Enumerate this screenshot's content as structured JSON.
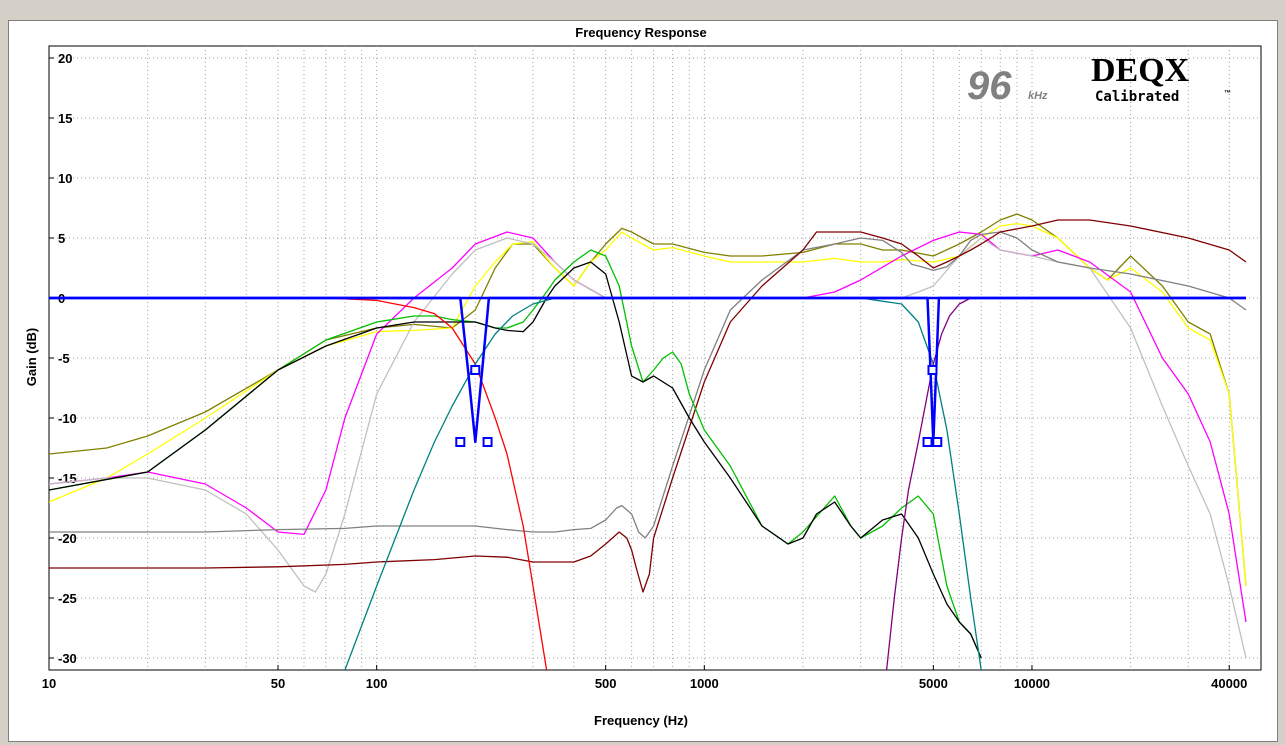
{
  "chart_data": {
    "type": "line",
    "title": "Frequency Response",
    "xlabel": "Frequency (Hz)",
    "ylabel": "Gain (dB)",
    "xscale": "log",
    "xlim": [
      10,
      50000
    ],
    "ylim": [
      -31,
      21
    ],
    "x_ticks": [
      {
        "value": 10,
        "label": "10"
      },
      {
        "value": 50,
        "label": "50"
      },
      {
        "value": 100,
        "label": "100"
      },
      {
        "value": 500,
        "label": "500"
      },
      {
        "value": 1000,
        "label": "1000"
      },
      {
        "value": 5000,
        "label": "5000"
      },
      {
        "value": 10000,
        "label": "10000"
      },
      {
        "value": 40000,
        "label": "40000"
      }
    ],
    "y_ticks": [
      {
        "value": 20,
        "label": "20"
      },
      {
        "value": 15,
        "label": "15"
      },
      {
        "value": 10,
        "label": "10"
      },
      {
        "value": 5,
        "label": "5"
      },
      {
        "value": 0,
        "label": "0"
      },
      {
        "value": -5,
        "label": "-5"
      },
      {
        "value": -10,
        "label": "-10"
      },
      {
        "value": -15,
        "label": "-15"
      },
      {
        "value": -20,
        "label": "-20"
      },
      {
        "value": -25,
        "label": "-25"
      },
      {
        "value": -30,
        "label": "-30"
      }
    ],
    "grid": true,
    "logo": {
      "rate": "96",
      "unit": "kHz",
      "brand": "DEQX",
      "subtitle": "Calibrated",
      "tm": "™"
    },
    "series": [
      {
        "color": "#808000",
        "x": [
          10,
          15,
          20,
          30,
          50,
          70,
          100,
          130,
          170,
          200,
          230,
          260,
          300,
          350,
          400,
          450,
          500,
          560,
          600,
          700,
          800,
          1000,
          1200,
          1500,
          2000,
          2500,
          3000,
          3500,
          4000,
          5000,
          6000,
          7000,
          8000,
          9000,
          10000,
          12000,
          15000,
          17000,
          20000,
          25000,
          30000,
          35000,
          40000,
          45000
        ],
        "y": [
          -13,
          -12.5,
          -11.5,
          -9.5,
          -6,
          -3.5,
          -2.5,
          -2.2,
          -2.5,
          -1,
          2.5,
          4.5,
          4.5,
          2.5,
          1,
          3,
          4.5,
          5.8,
          5.5,
          4.5,
          4.5,
          3.8,
          3.5,
          3.5,
          3.8,
          4.5,
          4.5,
          4,
          4,
          3.5,
          4.5,
          5.5,
          6.5,
          7,
          6.5,
          5,
          2.5,
          1.5,
          3.5,
          1,
          -2,
          -3,
          -8,
          -24
        ]
      },
      {
        "color": "#ffff00",
        "x": [
          10,
          15,
          20,
          30,
          50,
          70,
          100,
          130,
          170,
          200,
          230,
          260,
          300,
          350,
          400,
          450,
          500,
          560,
          600,
          700,
          800,
          1000,
          1200,
          1500,
          2000,
          2500,
          3000,
          3500,
          4000,
          5000,
          6000,
          7000,
          8000,
          9000,
          10000,
          12000,
          15000,
          17000,
          20000,
          25000,
          30000,
          35000,
          40000,
          45000
        ],
        "y": [
          -17,
          -15,
          -13,
          -10,
          -6,
          -4,
          -2.8,
          -2.7,
          -2.5,
          1,
          3,
          4.5,
          4.7,
          2.5,
          1,
          3,
          4,
          5.5,
          5,
          4,
          4.2,
          3.5,
          3,
          3,
          3,
          3.3,
          3,
          3,
          3.2,
          3,
          3.5,
          5,
          6,
          6.2,
          6,
          5,
          2.5,
          1.5,
          2.5,
          0.5,
          -2.5,
          -3.5,
          -8,
          -24
        ]
      },
      {
        "color": "#ff00ff",
        "x": [
          10,
          15,
          20,
          30,
          40,
          50,
          60,
          70,
          80,
          100,
          130,
          170,
          200,
          250,
          300,
          350,
          400,
          500,
          600,
          700,
          800,
          1000,
          1500,
          2000,
          2500,
          3000,
          4000,
          5000,
          6000,
          7000,
          8000,
          10000,
          12000,
          15000,
          20000,
          25000,
          30000,
          35000,
          40000,
          45000
        ],
        "y": [
          -15.5,
          -15,
          -14.5,
          -15.5,
          -17.5,
          -19.5,
          -19.7,
          -16,
          -10,
          -3,
          0,
          2.5,
          4.5,
          5.5,
          5,
          3,
          1.5,
          0,
          0,
          0,
          0,
          0,
          0,
          0,
          0.5,
          1.5,
          3.5,
          4.8,
          5.5,
          5.3,
          4,
          3.5,
          4,
          3,
          0.5,
          -5,
          -8,
          -12,
          -18,
          -27
        ]
      },
      {
        "color": "#c0c0c0",
        "x": [
          10,
          15,
          20,
          30,
          40,
          50,
          60,
          65,
          70,
          80,
          100,
          130,
          170,
          200,
          250,
          300,
          350,
          400,
          500,
          600,
          700,
          800,
          1000,
          1500,
          2000,
          2500,
          3000,
          3500,
          4000,
          4500,
          5000,
          6000,
          7000,
          8000,
          10000,
          12000,
          15000,
          20000,
          25000,
          30000,
          35000,
          40000,
          45000
        ],
        "y": [
          -15.5,
          -15,
          -15,
          -16,
          -18,
          -21,
          -24,
          -24.5,
          -23,
          -18,
          -8,
          -2,
          2,
          4,
          5,
          4.5,
          3,
          1.5,
          0,
          0,
          0,
          0,
          0,
          0,
          0,
          0,
          0,
          0,
          0,
          0.5,
          1,
          3.5,
          5,
          4,
          3.5,
          3,
          2.5,
          -2.5,
          -9,
          -14,
          -18,
          -24,
          -30
        ]
      },
      {
        "color": "#808080",
        "x": [
          10,
          20,
          30,
          50,
          80,
          100,
          150,
          200,
          250,
          300,
          350,
          400,
          450,
          500,
          540,
          560,
          600,
          630,
          660,
          700,
          800,
          1000,
          1200,
          1500,
          2000,
          2500,
          3000,
          3500,
          4000,
          4300,
          4600,
          5000,
          5500,
          6000,
          6500,
          7000,
          8000,
          9000,
          10000,
          12000,
          15000,
          20000,
          30000,
          40000,
          45000
        ],
        "y": [
          -19.5,
          -19.5,
          -19.5,
          -19.3,
          -19.2,
          -19,
          -19,
          -19,
          -19.3,
          -19.5,
          -19.5,
          -19.3,
          -19.2,
          -18.5,
          -17.5,
          -17.3,
          -18,
          -19.5,
          -20,
          -19,
          -14,
          -6,
          -1,
          1.5,
          4,
          4.5,
          5,
          4.8,
          3.8,
          2.8,
          2.6,
          2.3,
          2.6,
          3.5,
          4.8,
          5.3,
          5.5,
          5,
          4,
          3,
          2.5,
          2,
          1,
          0,
          -1
        ]
      },
      {
        "color": "#800000",
        "x": [
          10,
          20,
          30,
          50,
          80,
          100,
          150,
          200,
          250,
          300,
          350,
          400,
          450,
          500,
          550,
          580,
          600,
          620,
          650,
          680,
          700,
          800,
          1000,
          1200,
          1500,
          2000,
          2200,
          2500,
          3000,
          3500,
          4000,
          4500,
          5000,
          5500,
          6000,
          6500,
          7000,
          8000,
          10000,
          12000,
          15000,
          20000,
          30000,
          40000,
          45000
        ],
        "y": [
          -22.5,
          -22.5,
          -22.5,
          -22.4,
          -22.2,
          -22,
          -21.8,
          -21.5,
          -21.6,
          -22,
          -22,
          -22,
          -21.5,
          -20.5,
          -19.5,
          -20,
          -21,
          -22.5,
          -24.5,
          -23,
          -20,
          -15,
          -7,
          -2,
          1,
          4,
          5.5,
          5.5,
          5.5,
          5,
          4.5,
          3.5,
          2.5,
          3,
          3.5,
          4,
          4.5,
          5.5,
          6,
          6.5,
          6.5,
          6,
          5,
          4,
          3
        ]
      },
      {
        "color": "#00c000",
        "x": [
          10,
          20,
          30,
          50,
          70,
          100,
          130,
          150,
          170,
          200,
          230,
          250,
          280,
          300,
          330,
          350,
          400,
          450,
          500,
          550,
          600,
          650,
          700,
          750,
          800,
          850,
          900,
          1000,
          1200,
          1500,
          1800,
          2000,
          2500,
          2800,
          3000,
          3500,
          4000,
          4500,
          5000,
          5500,
          6000,
          6500,
          7000
        ],
        "y": [
          -16,
          -14.5,
          -11,
          -6,
          -3.5,
          -2,
          -1.5,
          -1.5,
          -1.8,
          -2,
          -2.5,
          -2.5,
          -2,
          -1,
          0.5,
          1.5,
          3,
          4,
          3.5,
          1,
          -4,
          -7,
          -6,
          -5,
          -4.5,
          -5.5,
          -8,
          -11,
          -14,
          -19,
          -20.5,
          -19.5,
          -16.5,
          -19,
          -20,
          -19,
          -17.5,
          -16.5,
          -18,
          -24,
          -27,
          -28,
          -30
        ]
      },
      {
        "color": "#000000",
        "x": [
          10,
          20,
          30,
          50,
          70,
          100,
          130,
          150,
          170,
          200,
          230,
          250,
          280,
          300,
          330,
          350,
          400,
          450,
          500,
          550,
          600,
          650,
          700,
          800,
          900,
          1000,
          1200,
          1500,
          1800,
          2000,
          2200,
          2500,
          2800,
          3000,
          3500,
          4000,
          4500,
          5000,
          5500,
          6000,
          6500,
          7000
        ],
        "y": [
          -16,
          -14.5,
          -11,
          -6,
          -4,
          -2.5,
          -2,
          -2,
          -2,
          -2,
          -2.5,
          -2.7,
          -2.8,
          -2,
          0,
          1,
          2.5,
          3,
          2,
          -2,
          -6.5,
          -7,
          -6.5,
          -7.5,
          -10,
          -12,
          -15,
          -19,
          -20.5,
          -20,
          -18,
          -17,
          -19,
          -20,
          -18.5,
          -18,
          -20,
          -23,
          -25.5,
          -27,
          -28,
          -30
        ]
      },
      {
        "color": "#ff0000",
        "x": [
          10,
          20,
          30,
          50,
          70,
          100,
          130,
          150,
          170,
          200,
          230,
          250,
          280,
          300,
          330
        ],
        "y": [
          0,
          0,
          0,
          0,
          0,
          -0.2,
          -0.8,
          -1.3,
          -2.5,
          -5.5,
          -10,
          -13,
          -19,
          -24,
          -31
        ]
      },
      {
        "color": "#008080",
        "x": [
          80,
          100,
          130,
          150,
          170,
          200,
          230,
          260,
          300,
          350,
          400,
          450,
          500,
          600,
          800,
          1000,
          2000,
          3000,
          4000,
          4500,
          5000,
          5500,
          6000,
          6500,
          7000
        ],
        "y": [
          -31,
          -24,
          -16,
          -12,
          -9,
          -5.5,
          -3,
          -1.5,
          -0.5,
          0,
          0,
          0,
          0,
          0,
          0,
          0,
          0,
          0,
          -0.5,
          -2,
          -5.5,
          -11,
          -18,
          -25,
          -31
        ]
      },
      {
        "color": "#800080",
        "x": [
          3600,
          3800,
          4000,
          4200,
          4500,
          4800,
          5000,
          5300,
          5600,
          6000,
          6500,
          7000,
          8000,
          10000,
          20000,
          45000
        ],
        "y": [
          -31,
          -25,
          -20,
          -16,
          -12,
          -8,
          -5.5,
          -3,
          -1.5,
          -0.5,
          0,
          0,
          0,
          0,
          0,
          0
        ]
      },
      {
        "color": "#0000ff",
        "x": [
          10,
          180,
          190,
          200,
          210,
          220,
          45000
        ],
        "y": [
          0,
          0,
          -6,
          -12,
          -6,
          0,
          0
        ]
      },
      {
        "color": "#0000ff",
        "x": [
          10,
          4800,
          4900,
          5000,
          5100,
          5200,
          45000
        ],
        "y": [
          0,
          0,
          -6,
          -12,
          -6,
          0,
          0
        ]
      }
    ],
    "filter_handles": [
      {
        "color": "#0000ff",
        "points": [
          {
            "x": 180,
            "y": -12
          },
          {
            "x": 200,
            "y": -6
          },
          {
            "x": 218,
            "y": -12
          }
        ]
      },
      {
        "color": "#0000ff",
        "points": [
          {
            "x": 4800,
            "y": -12
          },
          {
            "x": 4970,
            "y": -6
          },
          {
            "x": 5140,
            "y": -12
          }
        ]
      }
    ]
  }
}
